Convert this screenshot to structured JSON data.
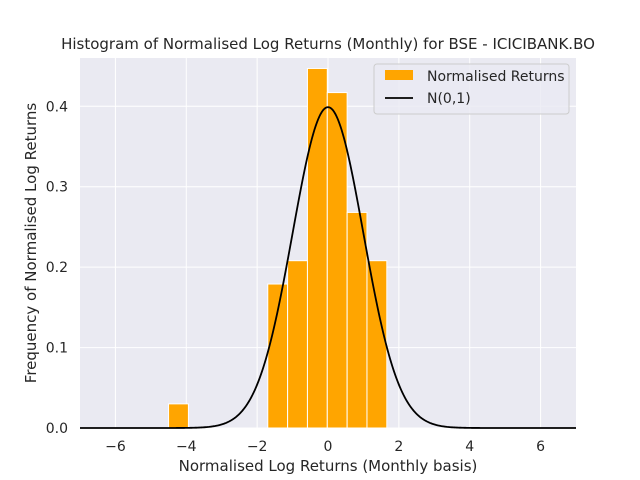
{
  "chart_data": {
    "type": "bar",
    "title": "Histogram of Normalised Log Returns (Monthly) for BSE - ICICIBANK.BO",
    "xlabel": "Normalised Log Returns (Monthly basis)",
    "ylabel": "Frequency of Normalised Log Returns",
    "xlim": [
      -7.0,
      7.0
    ],
    "ylim": [
      0.0,
      0.46
    ],
    "xticks": [
      -6,
      -4,
      -2,
      0,
      2,
      4,
      6
    ],
    "yticks": [
      0.0,
      0.1,
      0.2,
      0.3,
      0.4
    ],
    "xtick_labels": [
      "−6",
      "−4",
      "−2",
      "0",
      "2",
      "4",
      "6"
    ],
    "ytick_labels": [
      "0.0",
      "0.1",
      "0.2",
      "0.3",
      "0.4"
    ],
    "grid": true,
    "legend_position": "top-right",
    "background_color": "#eaeaf2",
    "bar_color": "#ffa500",
    "line_color": "#000000",
    "histogram": {
      "name": "Normalised Returns",
      "bins": [
        {
          "x0": -4.5,
          "x1": -3.94,
          "value": 0.03
        },
        {
          "x0": -1.7,
          "x1": -1.14,
          "value": 0.179
        },
        {
          "x0": -1.14,
          "x1": -0.58,
          "value": 0.208
        },
        {
          "x0": -0.58,
          "x1": -0.02,
          "value": 0.447
        },
        {
          "x0": -0.02,
          "x1": 0.54,
          "value": 0.417
        },
        {
          "x0": 0.54,
          "x1": 1.1,
          "value": 0.268
        },
        {
          "x0": 1.1,
          "x1": 1.66,
          "value": 0.208
        }
      ]
    },
    "curve": {
      "name": "N(0,1)",
      "function": "standard_normal_pdf",
      "x_range": [
        -7.0,
        7.0
      ]
    }
  }
}
